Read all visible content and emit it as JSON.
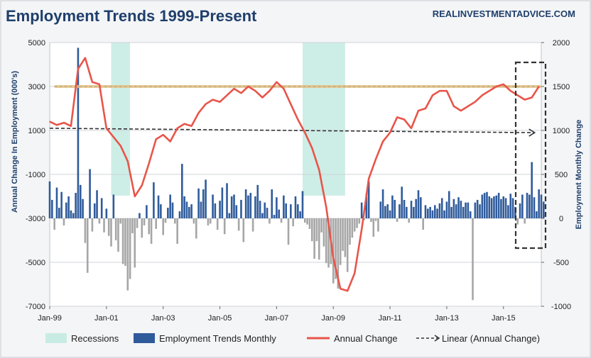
{
  "chart_data": {
    "type": "bar",
    "title": "Employment Trends 1999-Present",
    "source": "REALINVESTMENTADVICE.COM",
    "left_axis": {
      "label": "Annual Change In Employment (000's)",
      "ticks": [
        5000,
        3000,
        1000,
        -1000,
        -3000,
        -5000,
        -7000
      ],
      "range": [
        -7000,
        5000
      ]
    },
    "right_axis": {
      "label": "Employment Monthly Change",
      "ticks": [
        2000,
        1500,
        1000,
        500,
        0,
        -500,
        -1000
      ],
      "range": [
        -1000,
        2000
      ]
    },
    "x_axis": {
      "range": [
        "Jan-99",
        "May-16"
      ],
      "ticks": [
        "Jan-99",
        "Jan-01",
        "Jan-03",
        "Jan-05",
        "Jan-07",
        "Jan-09",
        "Jan-11",
        "Jan-13",
        "Jan-15"
      ]
    },
    "grid": true,
    "legend_position": "bottom",
    "legend": [
      "Recessions",
      "Employment Trends Monthly",
      "Annual Change",
      "Linear (Annual Change)"
    ],
    "recessions": [
      {
        "start": "Mar-01",
        "end": "Nov-01"
      },
      {
        "start": "Dec-07",
        "end": "Jun-09"
      }
    ],
    "annual_change_series": {
      "name": "Annual Change",
      "axis": "left",
      "color": "#e8554a",
      "x": [
        "Jan-99",
        "Apr-99",
        "Jul-99",
        "Oct-99",
        "Jan-00",
        "Apr-00",
        "Jul-00",
        "Oct-00",
        "Jan-01",
        "Apr-01",
        "Jul-01",
        "Oct-01",
        "Jan-02",
        "Apr-02",
        "Jul-02",
        "Oct-02",
        "Jan-03",
        "Apr-03",
        "Jul-03",
        "Oct-03",
        "Jan-04",
        "Apr-04",
        "Jul-04",
        "Oct-04",
        "Jan-05",
        "Apr-05",
        "Jul-05",
        "Oct-05",
        "Jan-06",
        "Apr-06",
        "Jul-06",
        "Oct-06",
        "Jan-07",
        "Apr-07",
        "Jul-07",
        "Oct-07",
        "Jan-08",
        "Apr-08",
        "Jul-08",
        "Oct-08",
        "Jan-09",
        "Apr-09",
        "Jul-09",
        "Oct-09",
        "Jan-10",
        "Apr-10",
        "Jul-10",
        "Oct-10",
        "Jan-11",
        "Apr-11",
        "Jul-11",
        "Oct-11",
        "Jan-12",
        "Apr-12",
        "Jul-12",
        "Oct-12",
        "Jan-13",
        "Apr-13",
        "Jul-13",
        "Oct-13",
        "Jan-14",
        "Apr-14",
        "Jul-14",
        "Oct-14",
        "Jan-15",
        "Apr-15",
        "Jul-15",
        "Oct-15",
        "Jan-16",
        "Apr-16"
      ],
      "values": [
        1400,
        1250,
        1350,
        1200,
        3800,
        4300,
        3200,
        3100,
        1100,
        700,
        300,
        -400,
        -2000,
        -1500,
        -500,
        600,
        800,
        500,
        1100,
        1300,
        1200,
        1800,
        2200,
        2400,
        2300,
        2600,
        2900,
        2700,
        3000,
        2800,
        2500,
        2800,
        3200,
        2900,
        2200,
        1500,
        900,
        200,
        -800,
        -2500,
        -4800,
        -6200,
        -6300,
        -5500,
        -3500,
        -1200,
        -300,
        500,
        900,
        1600,
        1500,
        1100,
        1900,
        2000,
        2600,
        2800,
        2800,
        2100,
        1900,
        2100,
        2300,
        2600,
        2800,
        3000,
        3100,
        2800,
        2600,
        2400,
        2500,
        3000
      ]
    },
    "monthly_series": {
      "name": "Employment Trends Monthly",
      "axis": "right",
      "positive_color": "#2f5b9b",
      "negative_color": "#a6a6a6",
      "x_start": "Jan-99",
      "values": [
        420,
        210,
        -130,
        350,
        120,
        300,
        -80,
        180,
        250,
        90,
        60,
        290,
        1940,
        380,
        220,
        -280,
        -620,
        560,
        -150,
        170,
        320,
        -60,
        230,
        -160,
        110,
        -200,
        -320,
        270,
        -250,
        -380,
        -60,
        -520,
        -540,
        -820,
        -690,
        -170,
        -560,
        -110,
        60,
        -220,
        -80,
        150,
        -180,
        -290,
        410,
        -120,
        260,
        160,
        -190,
        -50,
        120,
        270,
        180,
        -60,
        -290,
        80,
        620,
        250,
        190,
        130,
        160,
        -60,
        -230,
        340,
        190,
        330,
        440,
        -80,
        -60,
        270,
        170,
        -130,
        200,
        350,
        -180,
        400,
        60,
        250,
        270,
        150,
        -140,
        210,
        -270,
        330,
        260,
        290,
        -150,
        250,
        380,
        200,
        60,
        180,
        120,
        -60,
        330,
        40,
        240,
        100,
        -50,
        260,
        170,
        -300,
        160,
        -90,
        250,
        160,
        80,
        310,
        -50,
        -70,
        -120,
        -260,
        -460,
        -260,
        -470,
        -160,
        -320,
        -510,
        -560,
        -520,
        -740,
        -690,
        -800,
        -530,
        -370,
        -440,
        -610,
        -300,
        -220,
        -150,
        -110,
        -60,
        180,
        -20,
        280,
        420,
        -40,
        -210,
        -30,
        -150,
        190,
        330,
        140,
        160,
        90,
        260,
        210,
        -40,
        160,
        360,
        210,
        130,
        -50,
        200,
        130,
        220,
        320,
        240,
        -130,
        150,
        110,
        130,
        90,
        150,
        110,
        170,
        230,
        90,
        190,
        310,
        130,
        220,
        160,
        240,
        200,
        130,
        180,
        180,
        80,
        -930,
        180,
        210,
        160,
        270,
        290,
        300,
        250,
        230,
        250,
        260,
        290,
        220,
        250,
        230,
        150,
        280,
        230,
        130,
        -70,
        170,
        270,
        -60,
        290,
        270,
        640,
        240,
        80,
        330,
        270,
        190
      ]
    },
    "linear_trend": {
      "name": "Linear (Annual Change)",
      "axis": "left",
      "start": {
        "x": "Jan-99",
        "y": 1100
      },
      "end": {
        "x": "Apr-16",
        "y": 900
      }
    },
    "reference_line": {
      "axis": "left",
      "y": 3000
    }
  },
  "colors": {
    "background": "#f4f5f7",
    "plot_background": "#ffffff",
    "recession_fill": "#c8ece3",
    "title_color": "#1f3f6b",
    "annual_line": "#e8554a",
    "bar_positive": "#2f5b9b",
    "bar_negative": "#a6a6a6",
    "reference_line": "#e6c285",
    "trend_line": "#333333",
    "highlight_box": "#333333"
  }
}
